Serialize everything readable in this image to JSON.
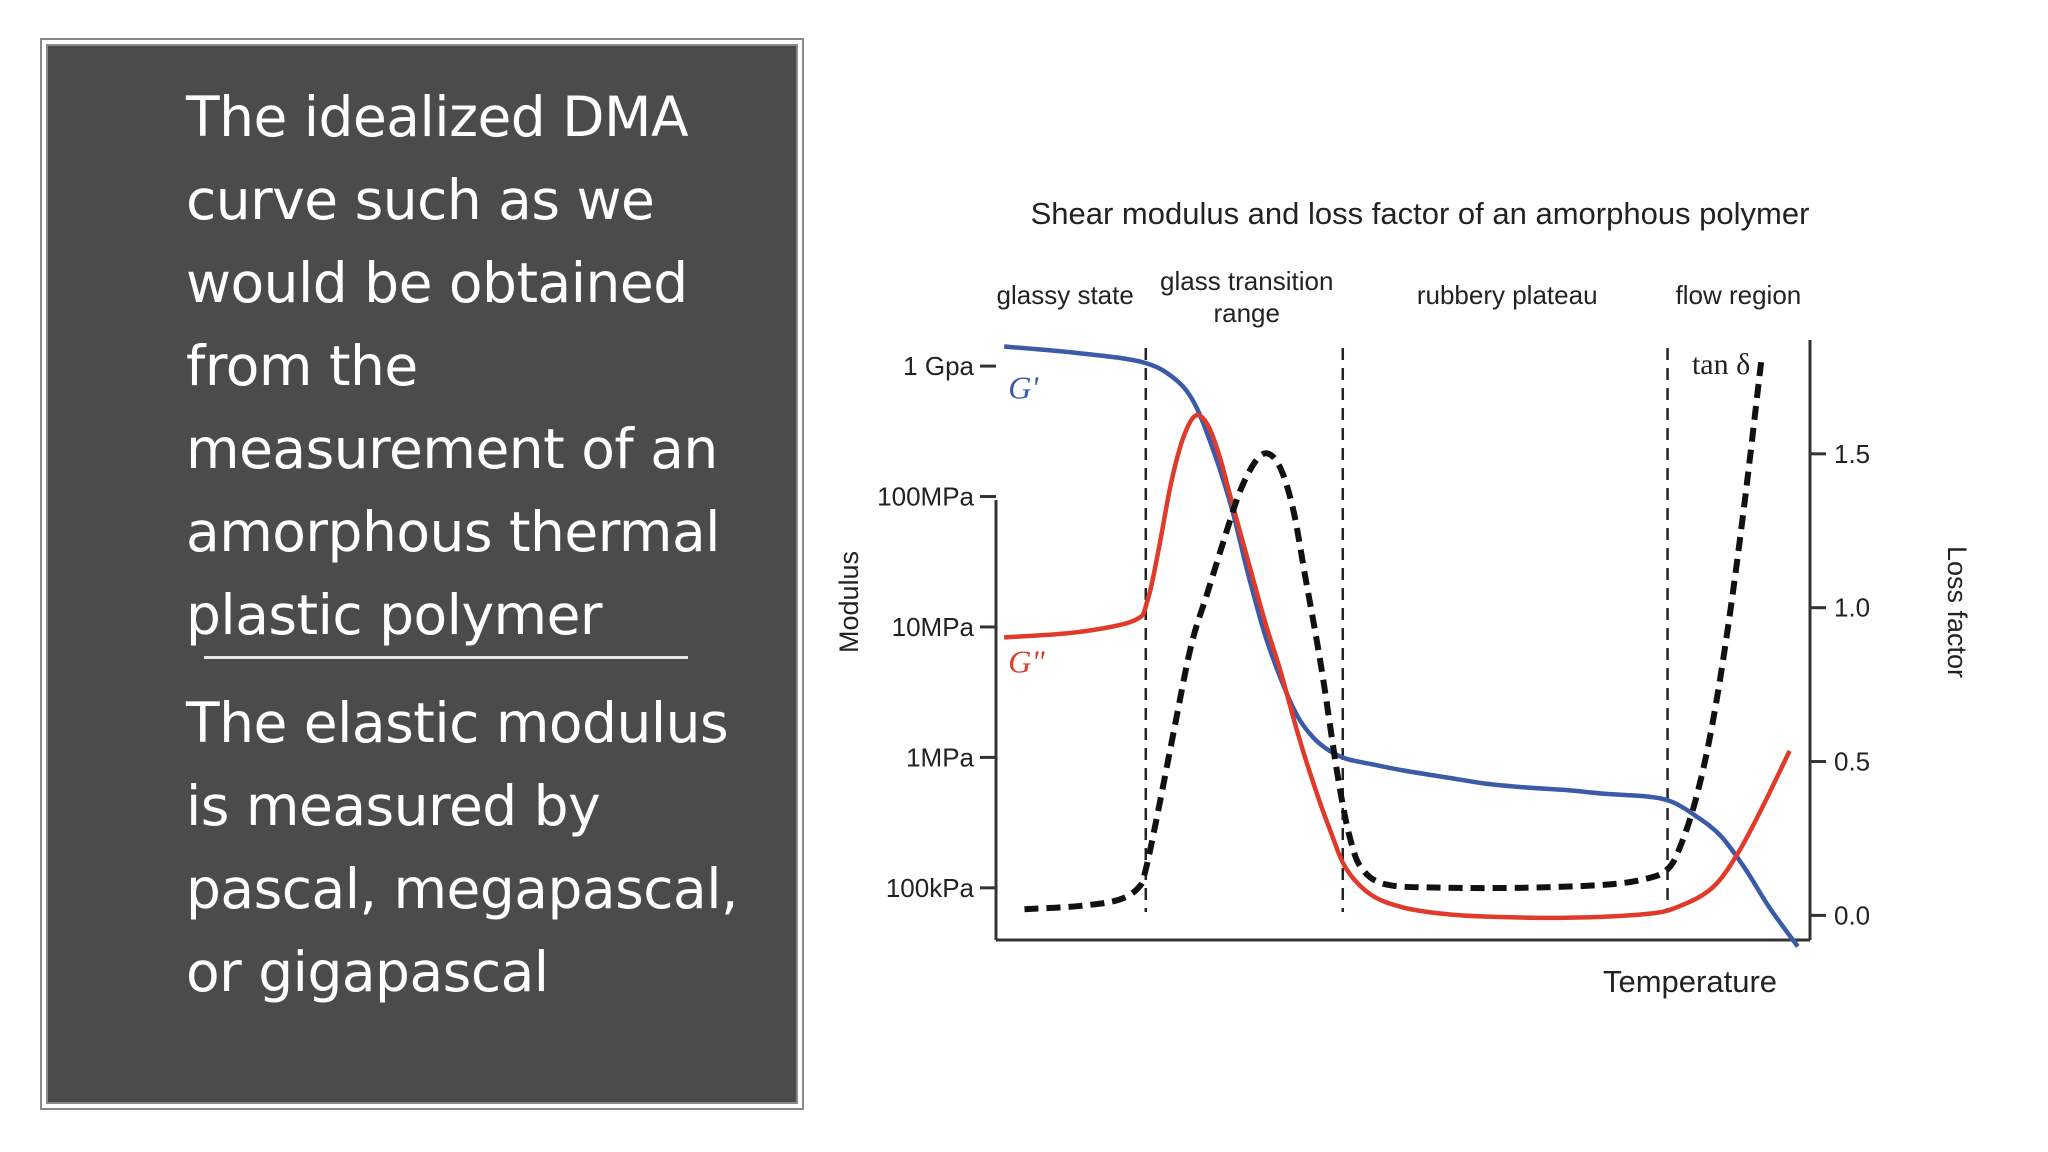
{
  "left_panel": {
    "paragraph1_lines": [
      "The idealized DMA",
      "curve such as we",
      "would be obtained",
      "from the",
      "measurement of an",
      "amorphous thermal",
      "plastic polymer"
    ],
    "paragraph2_lines": [
      "The elastic modulus",
      "is measured by",
      "pascal, megapascal,",
      "or gigapascal"
    ]
  },
  "colors": {
    "panel_bg": "#4b4b4b",
    "g_prime": "#3b5aa8",
    "g_double_prime": "#e03a2a",
    "tan_delta": "#111111"
  },
  "chart_data": {
    "type": "line",
    "title": "Shear modulus and loss factor of an amorphous polymer",
    "xlabel": "Temperature",
    "ylabel": "Modulus",
    "y2label": "Loss factor",
    "y_ticks": [
      "1 Gpa",
      "100MPa",
      "10MPa",
      "1MPa",
      "100kPa"
    ],
    "y_tick_log_values": [
      9,
      8,
      7,
      6,
      5
    ],
    "y2_ticks": [
      "1.5",
      "1.0",
      "0.5",
      "0.0"
    ],
    "y2_tick_values": [
      1.5,
      1.0,
      0.5,
      0.0
    ],
    "y_scale": "log",
    "ylim_log": [
      4.6,
      9.2
    ],
    "y2lim": [
      -0.08,
      1.87
    ],
    "xlim": [
      0,
      100
    ],
    "regions": [
      {
        "label_lines": [
          "glassy state"
        ],
        "x_center": 8.5
      },
      {
        "label_lines": [
          "glass  transition",
          "range"
        ],
        "x_center": 30.8
      },
      {
        "label_lines": [
          "rubbery plateau"
        ],
        "x_center": 62.8
      },
      {
        "label_lines": [
          "flow region"
        ],
        "x_center": 91.2
      }
    ],
    "boundaries_x": [
      18.4,
      42.6,
      82.5
    ],
    "series": [
      {
        "name": "G'",
        "axis": "left_log",
        "x": [
          1,
          10,
          18,
          22,
          24.5,
          27,
          29,
          31,
          33,
          35,
          37,
          39,
          41,
          43,
          46,
          50,
          55,
          60,
          65,
          70,
          75,
          80,
          83,
          86,
          89,
          92,
          95,
          98.5
        ],
        "y": [
          9.15,
          9.1,
          9.03,
          8.9,
          8.7,
          8.3,
          7.9,
          7.4,
          6.95,
          6.6,
          6.32,
          6.15,
          6.05,
          5.99,
          5.95,
          5.9,
          5.85,
          5.8,
          5.77,
          5.75,
          5.72,
          5.7,
          5.66,
          5.55,
          5.4,
          5.15,
          4.85,
          4.55
        ]
      },
      {
        "name": "G\"",
        "axis": "left_log",
        "x": [
          1,
          10,
          17,
          18.6,
          20,
          21.5,
          23,
          24.5,
          26,
          27.5,
          29,
          31,
          33,
          35,
          37,
          39,
          41,
          43,
          46,
          50,
          55,
          60,
          70,
          80,
          84,
          88,
          91,
          94,
          97.5
        ],
        "y": [
          6.92,
          6.96,
          7.05,
          7.2,
          7.6,
          8.1,
          8.45,
          8.62,
          8.55,
          8.3,
          7.95,
          7.5,
          7.05,
          6.65,
          6.2,
          5.8,
          5.45,
          5.15,
          4.95,
          4.85,
          4.8,
          4.78,
          4.77,
          4.8,
          4.86,
          5.0,
          5.25,
          5.6,
          6.05
        ]
      },
      {
        "name": "tan δ",
        "axis": "right",
        "x": [
          3.5,
          10,
          15,
          17.5,
          18.4,
          20,
          22,
          24,
          26,
          28,
          30,
          32,
          33.5,
          35,
          36.5,
          38,
          40,
          42,
          43.5,
          45,
          48,
          55,
          65,
          75,
          80,
          82.5,
          84,
          86,
          88,
          90,
          92,
          94
        ],
        "y": [
          0.02,
          0.03,
          0.05,
          0.09,
          0.15,
          0.35,
          0.62,
          0.88,
          1.05,
          1.22,
          1.38,
          1.48,
          1.5,
          1.45,
          1.32,
          1.1,
          0.8,
          0.45,
          0.25,
          0.15,
          0.1,
          0.09,
          0.09,
          0.1,
          0.12,
          0.15,
          0.22,
          0.38,
          0.62,
          0.95,
          1.35,
          1.8
        ]
      }
    ],
    "series_labels": [
      {
        "text": "G'",
        "series": "G'"
      },
      {
        "text": "G\"",
        "series": "G\""
      },
      {
        "text": "tan δ",
        "series": "tan δ"
      }
    ],
    "grid": false,
    "legend": "none"
  }
}
